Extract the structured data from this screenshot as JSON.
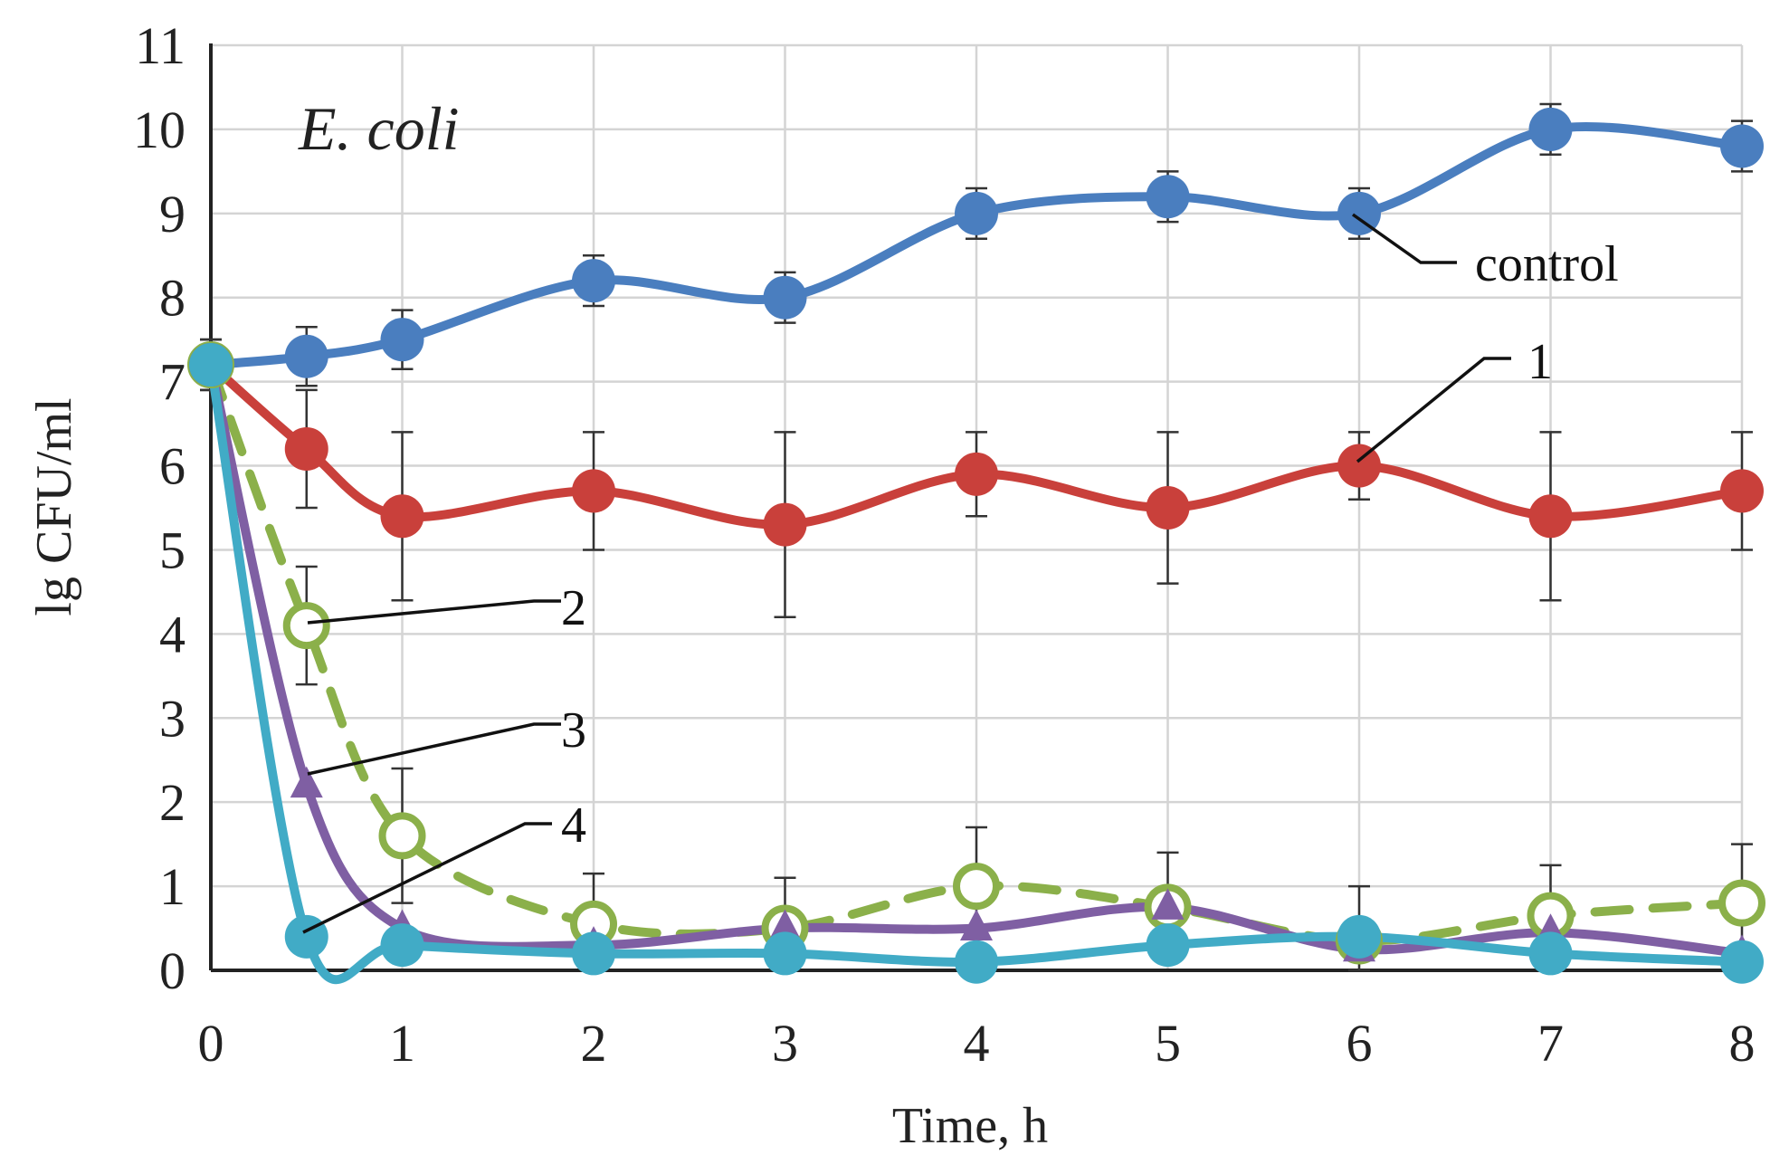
{
  "chart_data": {
    "type": "line",
    "organism_label": "E. coli",
    "xlabel": "Time, h",
    "ylabel": "lg CFU/ml",
    "xlim": [
      0,
      8
    ],
    "ylim": [
      0,
      11
    ],
    "grid": true,
    "x_ticks": [
      0,
      1,
      2,
      3,
      4,
      5,
      6,
      7,
      8
    ],
    "y_ticks": [
      0,
      1,
      2,
      3,
      4,
      5,
      6,
      7,
      8,
      9,
      10,
      11
    ],
    "series": [
      {
        "name": "control",
        "label": "control",
        "color": "#4a7ebf",
        "marker": "filled-circle",
        "dashed": false,
        "x": [
          0,
          0.5,
          1,
          2,
          3,
          4,
          5,
          6,
          7,
          8
        ],
        "y": [
          7.2,
          7.3,
          7.5,
          8.2,
          8.0,
          9.0,
          9.2,
          9.0,
          10.0,
          9.8
        ],
        "err": [
          0.3,
          0.35,
          0.35,
          0.3,
          0.3,
          0.3,
          0.3,
          0.3,
          0.3,
          0.3
        ]
      },
      {
        "name": "1",
        "label": "1",
        "color": "#c9403b",
        "marker": "filled-circle",
        "dashed": false,
        "x": [
          0,
          0.5,
          1,
          2,
          3,
          4,
          5,
          6,
          7,
          8
        ],
        "y": [
          7.2,
          6.2,
          5.4,
          5.7,
          5.3,
          5.9,
          5.5,
          6.0,
          5.4,
          5.7
        ],
        "err": [
          0.3,
          0.7,
          1.0,
          0.7,
          1.1,
          0.5,
          0.9,
          0.4,
          1.0,
          0.7
        ]
      },
      {
        "name": "2",
        "label": "2",
        "color": "#8bb04a",
        "marker": "open-circle",
        "dashed": true,
        "x": [
          0,
          0.5,
          1,
          2,
          3,
          4,
          5,
          6,
          7,
          8
        ],
        "y": [
          7.2,
          4.1,
          1.6,
          0.55,
          0.5,
          1.0,
          0.75,
          0.35,
          0.65,
          0.8
        ],
        "err": [
          0.3,
          0.7,
          0.8,
          0.6,
          0.6,
          0.7,
          0.65,
          0.65,
          0.6,
          0.7
        ]
      },
      {
        "name": "3",
        "label": "3",
        "color": "#7f5fa3",
        "marker": "filled-triangle",
        "dashed": false,
        "x": [
          0,
          0.5,
          1,
          2,
          3,
          4,
          5,
          6,
          7,
          8
        ],
        "y": [
          7.2,
          2.2,
          0.5,
          0.3,
          0.5,
          0.5,
          0.75,
          0.25,
          0.45,
          0.2
        ],
        "err": [
          0,
          0,
          0,
          0,
          0,
          0,
          0,
          0,
          0,
          0
        ]
      },
      {
        "name": "4",
        "label": "4",
        "color": "#41abc6",
        "marker": "filled-circle",
        "dashed": false,
        "x": [
          0,
          0.5,
          1,
          2,
          3,
          4,
          5,
          6,
          7,
          8
        ],
        "y": [
          7.2,
          0.4,
          0.3,
          0.2,
          0.2,
          0.1,
          0.3,
          0.4,
          0.2,
          0.1
        ],
        "err": [
          0,
          0,
          0,
          0,
          0,
          0,
          0,
          0,
          0,
          0
        ]
      }
    ]
  }
}
